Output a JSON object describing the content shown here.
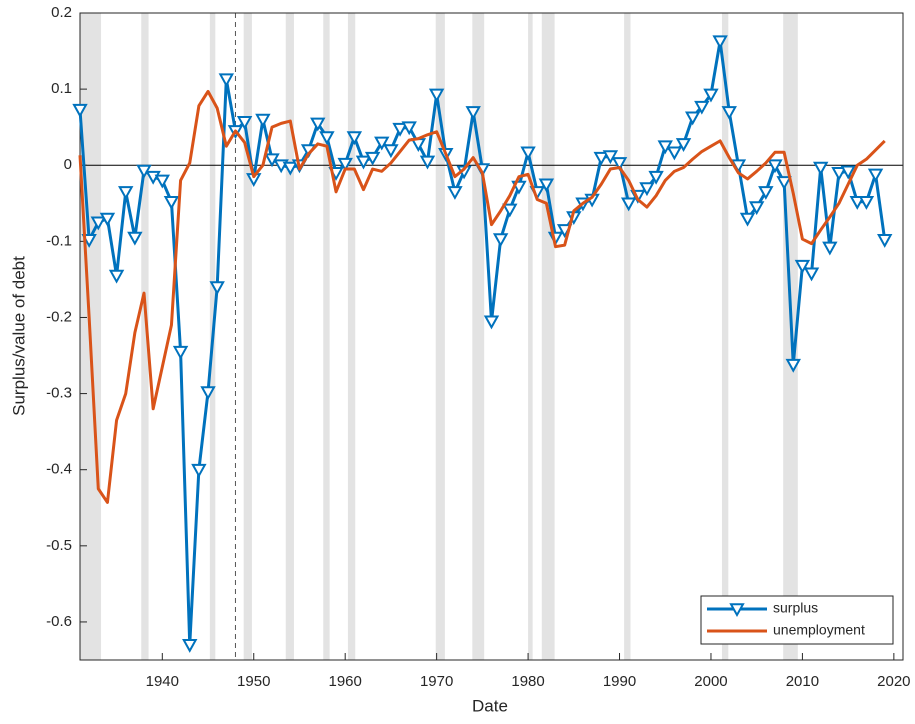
{
  "chart_data": {
    "type": "line",
    "xlabel": "Date",
    "ylabel": "Surplus/value of debt",
    "x": [
      1931,
      1932,
      1933,
      1934,
      1935,
      1936,
      1937,
      1938,
      1939,
      1940,
      1941,
      1942,
      1943,
      1944,
      1945,
      1946,
      1947,
      1948,
      1949,
      1950,
      1951,
      1952,
      1953,
      1954,
      1955,
      1956,
      1957,
      1958,
      1959,
      1960,
      1961,
      1962,
      1963,
      1964,
      1965,
      1966,
      1967,
      1968,
      1969,
      1970,
      1971,
      1972,
      1973,
      1974,
      1975,
      1976,
      1977,
      1978,
      1979,
      1980,
      1981,
      1982,
      1983,
      1984,
      1985,
      1986,
      1987,
      1988,
      1989,
      1990,
      1991,
      1992,
      1993,
      1994,
      1995,
      1996,
      1997,
      1998,
      1999,
      2000,
      2001,
      2002,
      2003,
      2004,
      2005,
      2006,
      2007,
      2008,
      2009,
      2010,
      2011,
      2012,
      2013,
      2014,
      2015,
      2016,
      2017,
      2018,
      2019
    ],
    "series": [
      {
        "name": "surplus",
        "color": "#0072bd",
        "marker": "triangle-down",
        "values": [
          0.073,
          -0.098,
          -0.075,
          -0.07,
          -0.145,
          -0.035,
          -0.095,
          -0.007,
          -0.015,
          -0.02,
          -0.048,
          -0.245,
          -0.63,
          -0.4,
          -0.298,
          -0.16,
          0.113,
          0.045,
          0.057,
          -0.018,
          0.06,
          0.008,
          0.0,
          -0.003,
          0.0,
          0.02,
          0.055,
          0.037,
          -0.01,
          0.002,
          0.037,
          0.005,
          0.01,
          0.03,
          0.02,
          0.048,
          0.05,
          0.028,
          0.005,
          0.093,
          0.015,
          -0.035,
          -0.008,
          0.07,
          -0.005,
          -0.205,
          -0.097,
          -0.058,
          -0.028,
          0.017,
          -0.035,
          -0.025,
          -0.095,
          -0.085,
          -0.068,
          -0.05,
          -0.045,
          0.01,
          0.012,
          0.003,
          -0.05,
          -0.04,
          -0.03,
          -0.015,
          0.025,
          0.017,
          0.028,
          0.063,
          0.077,
          0.093,
          0.163,
          0.07,
          0.0,
          -0.07,
          -0.055,
          -0.035,
          0.0,
          -0.022,
          -0.262,
          -0.132,
          -0.142,
          -0.003,
          -0.108,
          -0.01,
          -0.008,
          -0.048,
          -0.048,
          -0.012,
          -0.098
        ]
      },
      {
        "name": "unemployment",
        "color": "#d95319",
        "values": [
          0.013,
          -0.2,
          -0.425,
          -0.443,
          -0.335,
          -0.3,
          -0.22,
          -0.168,
          -0.32,
          -0.265,
          -0.21,
          -0.02,
          0.003,
          0.078,
          0.097,
          0.075,
          0.025,
          0.045,
          0.03,
          -0.015,
          0.0,
          0.05,
          0.055,
          0.058,
          -0.005,
          0.015,
          0.028,
          0.025,
          -0.035,
          -0.005,
          -0.005,
          -0.032,
          -0.005,
          -0.008,
          0.003,
          0.018,
          0.033,
          0.035,
          0.04,
          0.044,
          0.015,
          -0.015,
          -0.005,
          0.01,
          -0.01,
          -0.078,
          -0.06,
          -0.04,
          -0.015,
          -0.012,
          -0.045,
          -0.05,
          -0.107,
          -0.105,
          -0.06,
          -0.05,
          -0.042,
          -0.025,
          -0.005,
          -0.003,
          -0.02,
          -0.045,
          -0.055,
          -0.04,
          -0.02,
          -0.008,
          -0.003,
          0.008,
          0.018,
          0.025,
          0.032,
          0.01,
          -0.01,
          -0.018,
          -0.008,
          0.003,
          0.017,
          0.017,
          -0.037,
          -0.097,
          -0.103,
          -0.085,
          -0.068,
          -0.05,
          -0.025,
          0.0,
          0.008,
          0.02,
          0.032
        ]
      }
    ],
    "recessions": [
      [
        1931.0,
        1933.3
      ],
      [
        1937.7,
        1938.5
      ],
      [
        1945.2,
        1945.8
      ],
      [
        1948.9,
        1949.8
      ],
      [
        1953.5,
        1954.4
      ],
      [
        1957.6,
        1958.3
      ],
      [
        1960.3,
        1961.1
      ],
      [
        1969.9,
        1970.9
      ],
      [
        1973.9,
        1975.2
      ],
      [
        1980.0,
        1980.5
      ],
      [
        1981.5,
        1982.9
      ],
      [
        1990.5,
        1991.2
      ],
      [
        2001.2,
        2001.9
      ],
      [
        2007.9,
        2009.5
      ]
    ],
    "vline": 1948,
    "xlim": [
      1931,
      2021
    ],
    "xticks": [
      1940,
      1950,
      1960,
      1970,
      1980,
      1990,
      2000,
      2010,
      2020
    ],
    "ylim": [
      -0.65,
      0.2
    ],
    "yticks": [
      0.2,
      0.1,
      0,
      -0.1,
      -0.2,
      -0.3,
      -0.4,
      -0.5,
      -0.6
    ],
    "legend": "lower-right"
  }
}
